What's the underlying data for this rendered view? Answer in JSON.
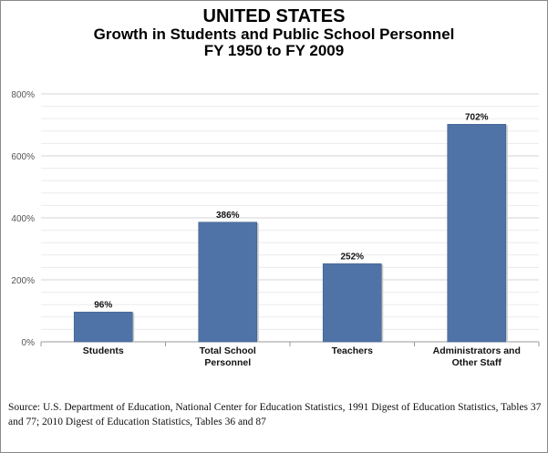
{
  "header": {
    "title": "UNITED STATES",
    "subtitle": "Growth in Students and Public School Personnel",
    "period": "FY 1950 to FY 2009"
  },
  "chart_data": {
    "type": "bar",
    "categories": [
      "Students",
      "Total School Personnel",
      "Teachers",
      "Administrators and Other Staff"
    ],
    "category_lines": [
      [
        "Students"
      ],
      [
        "Total School",
        "Personnel"
      ],
      [
        "Teachers"
      ],
      [
        "Administrators and",
        "Other Staff"
      ]
    ],
    "values": [
      96,
      386,
      252,
      702
    ],
    "value_labels": [
      "96%",
      "386%",
      "252%",
      "702%"
    ],
    "ylim": [
      0,
      800
    ],
    "yticks": [
      0,
      200,
      400,
      600,
      800
    ],
    "ytick_labels": [
      "0%",
      "200%",
      "400%",
      "600%",
      "800%"
    ],
    "grid": true,
    "bar_color": "#4f73a6"
  },
  "source": "Source: U.S. Department of Education, National Center for Education Statistics, 1991 Digest of Education Statistics, Tables 37 and 77; 2010 Digest of Education Statistics, Tables 36 and 87"
}
